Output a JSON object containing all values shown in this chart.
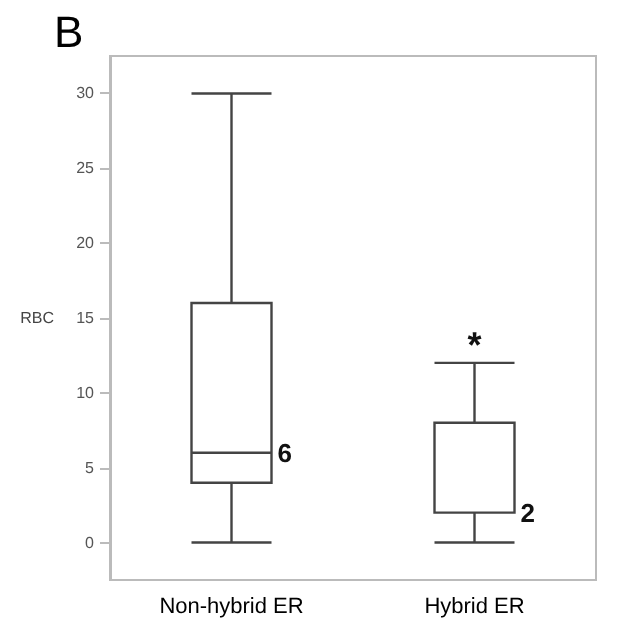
{
  "chart_data": {
    "type": "box",
    "title": "B",
    "ylabel": "RBC",
    "categories": [
      "Non-hybrid ER",
      "Hybrid ER"
    ],
    "boxes": [
      {
        "low": 0,
        "q1": 4,
        "median": 6,
        "q3": 16,
        "high": 30
      },
      {
        "low": 0,
        "q1": 2,
        "median": 2,
        "q3": 8,
        "high": 12
      }
    ],
    "ylim": [
      -2.5,
      32.5
    ],
    "yticks": [
      0,
      5,
      10,
      15,
      20,
      25,
      30
    ],
    "grid": false,
    "annotations": [
      {
        "text": "6",
        "x": "Non-hybrid ER",
        "y": 6
      },
      {
        "text": "2",
        "x": "Hybrid ER",
        "y": 2
      },
      {
        "text": "*",
        "x": "Hybrid ER",
        "y": 12
      }
    ]
  }
}
